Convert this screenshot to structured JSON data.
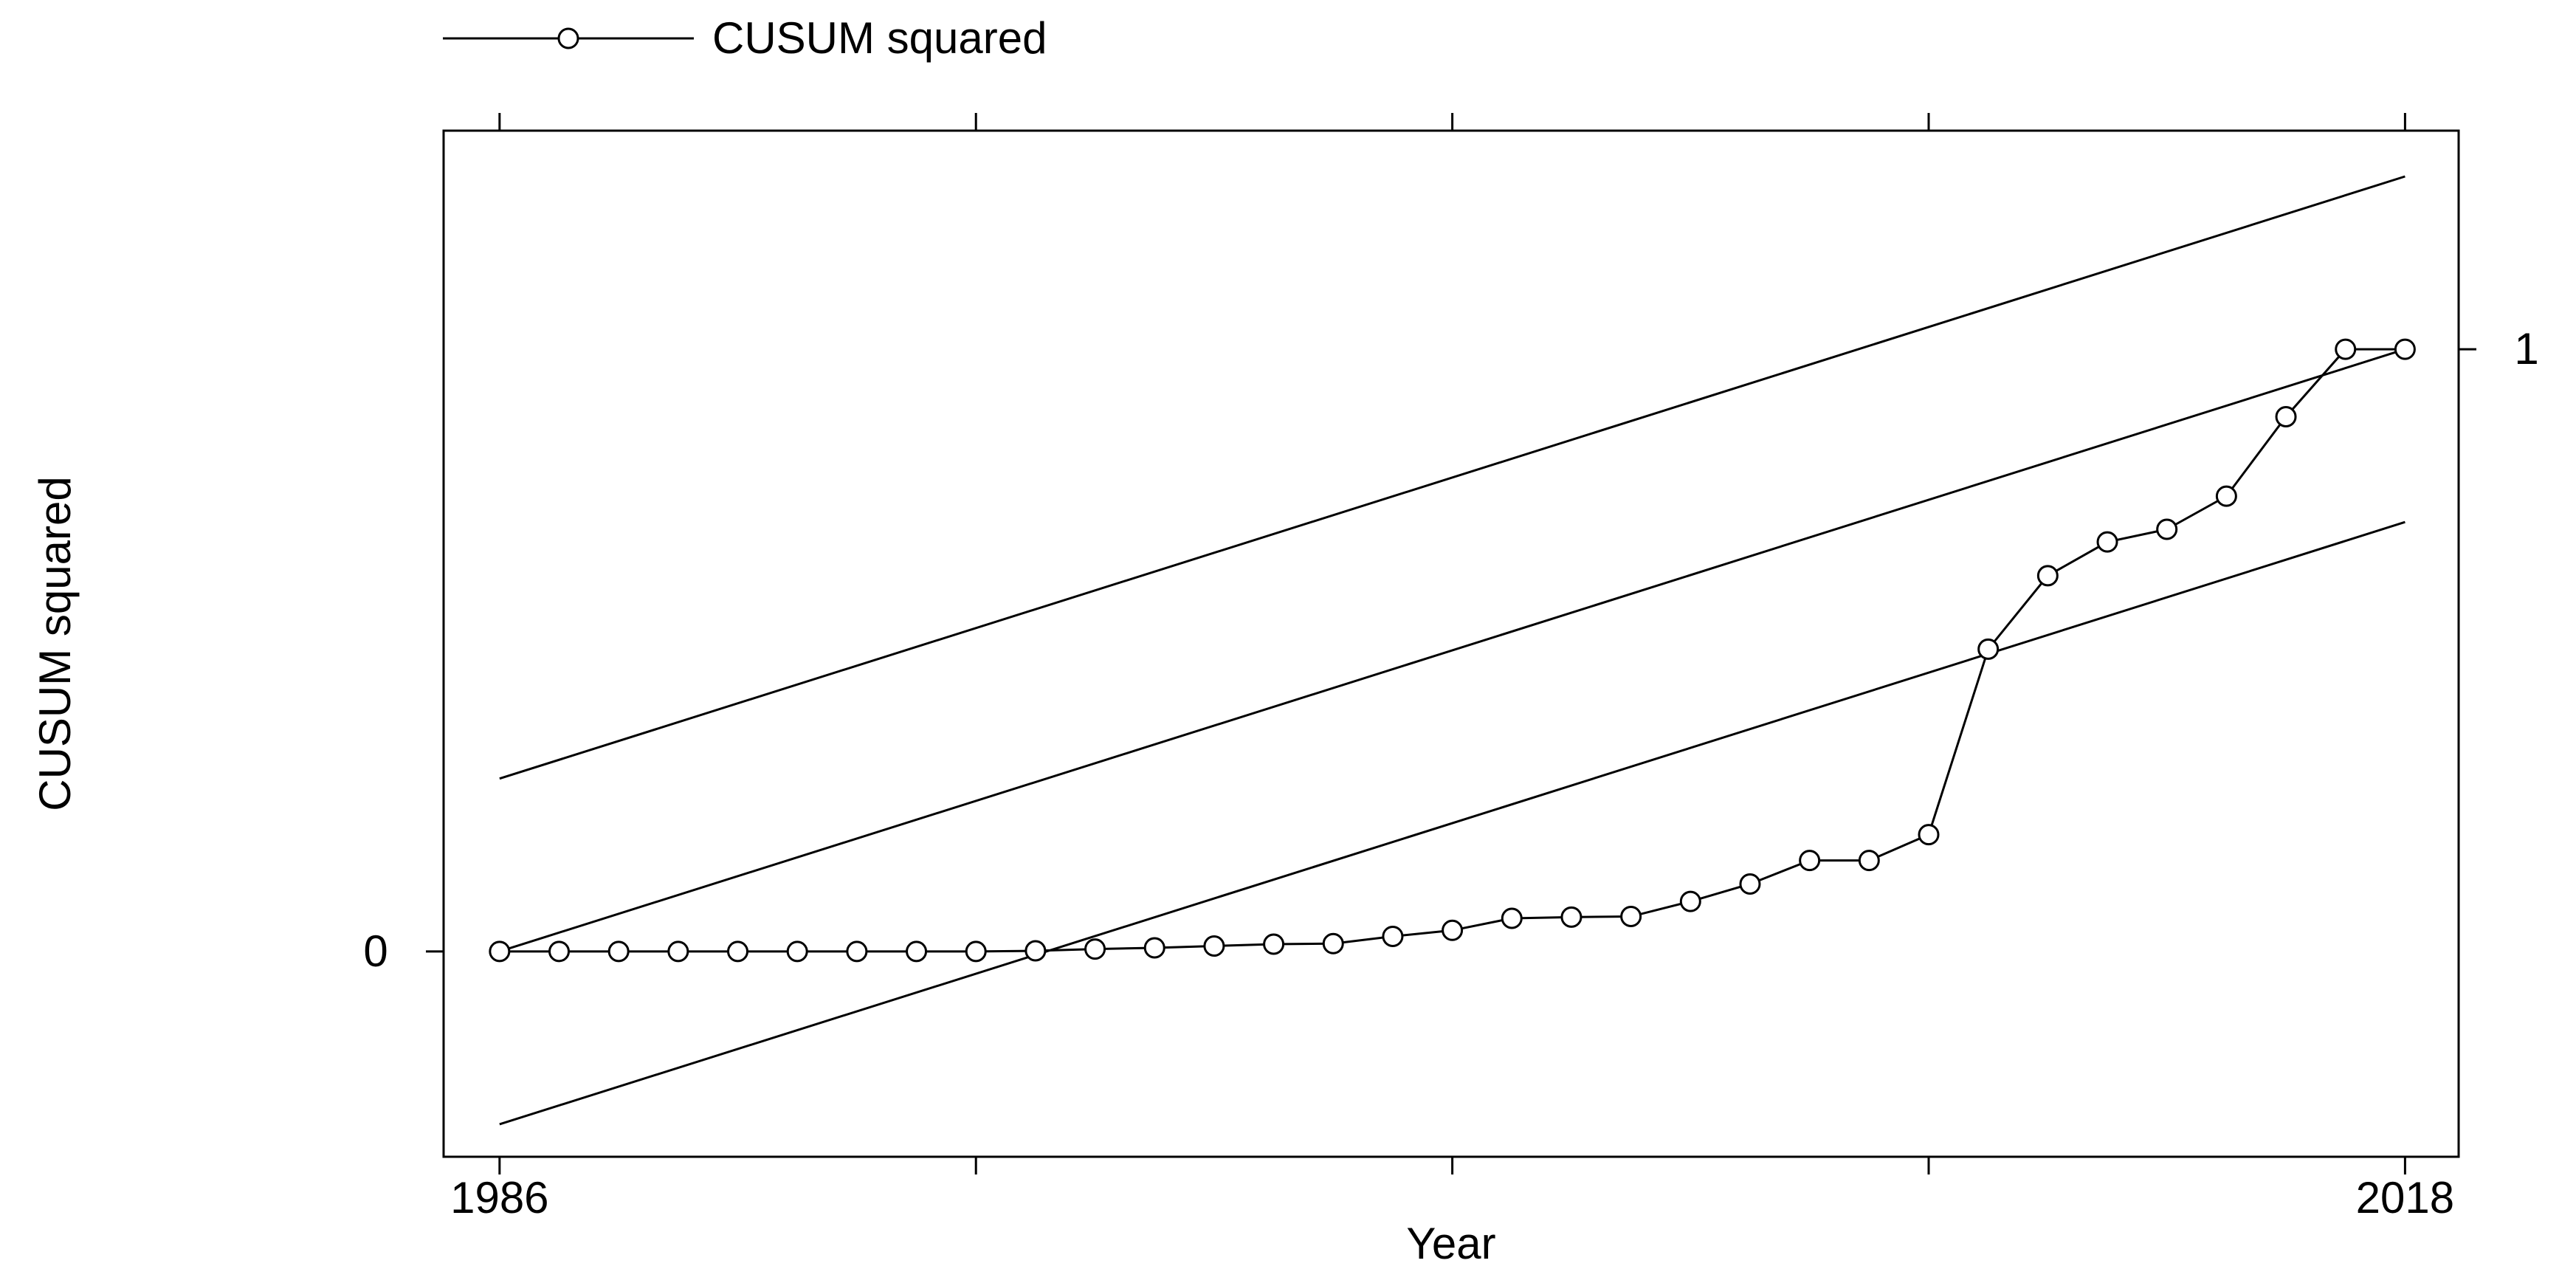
{
  "chart_data": {
    "type": "line",
    "legend": {
      "position": "top-left",
      "entries": [
        "CUSUM squared"
      ]
    },
    "xlabel": "Year",
    "ylabel": "CUSUM squared",
    "xlim": [
      1985.06,
      2018.9
    ],
    "ylim": [
      -0.341,
      1.363
    ],
    "x_tick_labels": [
      {
        "value": 1986,
        "label": "1986"
      },
      {
        "value": 2018,
        "label": "2018"
      }
    ],
    "x_ticks_unlabeled": [
      1994,
      2002,
      2010
    ],
    "y_tick_labels": [
      {
        "value": 0,
        "label": "0",
        "side": "left"
      },
      {
        "value": 1,
        "label": "1",
        "side": "right"
      }
    ],
    "grid": false,
    "series": [
      {
        "name": "CUSUM squared",
        "marker": "circle",
        "x": [
          1986,
          1987,
          1988,
          1989,
          1990,
          1991,
          1992,
          1993,
          1994,
          1995,
          1996,
          1997,
          1998,
          1999,
          2000,
          2001,
          2002,
          2003,
          2004,
          2005,
          2006,
          2007,
          2008,
          2009,
          2010,
          2011,
          2012,
          2013,
          2014,
          2015,
          2016,
          2017,
          2018
        ],
        "y": [
          0,
          0,
          0,
          0,
          0,
          0,
          0,
          0,
          0,
          0.001,
          0.004,
          0.006,
          0.009,
          0.012,
          0.013,
          0.025,
          0.035,
          0.055,
          0.057,
          0.058,
          0.083,
          0.112,
          0.151,
          0.151,
          0.194,
          0.502,
          0.624,
          0.68,
          0.701,
          0.756,
          0.888,
          1.0,
          1.0
        ]
      },
      {
        "role": "upper bound",
        "x": [
          1986,
          2018
        ],
        "y": [
          0.287,
          1.287
        ]
      },
      {
        "role": "reference",
        "x": [
          1986,
          2018
        ],
        "y": [
          0,
          1
        ]
      },
      {
        "role": "lower bound",
        "x": [
          1986,
          2018
        ],
        "y": [
          -0.287,
          0.713
        ]
      }
    ]
  }
}
